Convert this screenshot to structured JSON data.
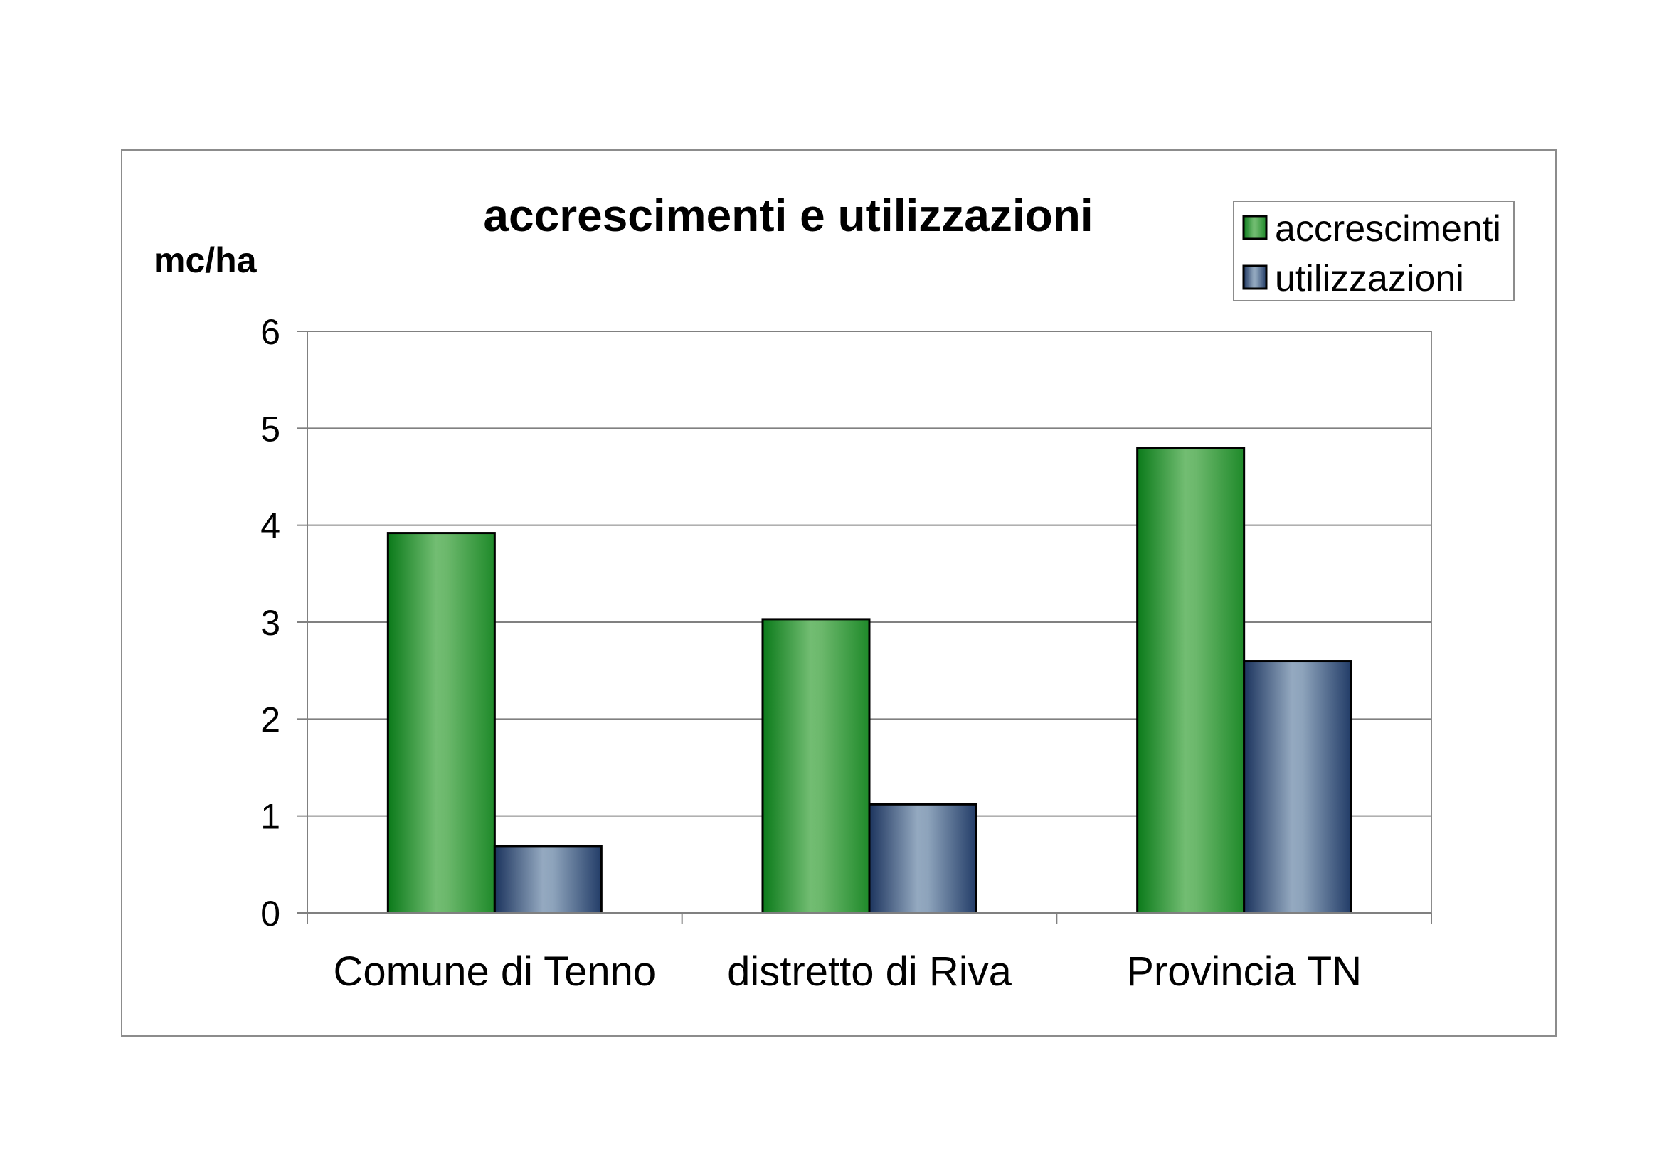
{
  "chart_data": {
    "type": "bar",
    "title": "accrescimenti e utilizzazioni",
    "ylabel": "mc/ha",
    "xlabel": "",
    "categories": [
      "Comune di Tenno",
      "distretto di Riva",
      "Provincia TN"
    ],
    "series": [
      {
        "name": "accrescimenti",
        "values": [
          3.92,
          3.03,
          4.8
        ],
        "color": "#2e9e3e"
      },
      {
        "name": "utilizzazioni",
        "values": [
          0.69,
          1.12,
          2.6
        ],
        "color": "#6f87a8"
      }
    ],
    "ylim": [
      0,
      6
    ],
    "yticks": [
      "0",
      "1",
      "2",
      "3",
      "4",
      "5",
      "6"
    ],
    "grid": true,
    "legend_position": "top-right"
  }
}
